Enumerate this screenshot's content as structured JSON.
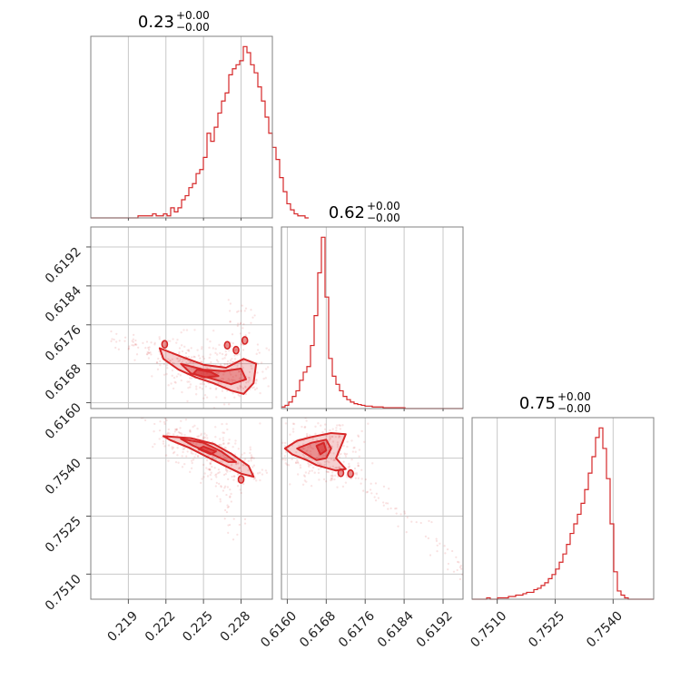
{
  "chart_data": {
    "type": "corner",
    "color": "#d62728",
    "parameters": [
      {
        "title_value": "0.23",
        "title_upper": "+0.00",
        "title_lower": "−0.00",
        "range": [
          0.216,
          0.2305
        ],
        "ticks": [
          "0.219",
          "0.222",
          "0.225",
          "0.228"
        ],
        "tick_values": [
          0.219,
          0.222,
          0.225,
          0.228
        ],
        "histogram": {
          "bin_start": 0.216,
          "bin_width": 0.00029,
          "counts": [
            0,
            0,
            0,
            0,
            0,
            0,
            0,
            0,
            0,
            0,
            0,
            0,
            0,
            1,
            1,
            1,
            1,
            2,
            1,
            1,
            2,
            1,
            5,
            3,
            5,
            9,
            11,
            15,
            17,
            22,
            24,
            30,
            42,
            38,
            45,
            52,
            58,
            62,
            71,
            74,
            76,
            78,
            85,
            82,
            76,
            72,
            65,
            58,
            50,
            42,
            35,
            29,
            20,
            13,
            7,
            4,
            2,
            1,
            1,
            0
          ]
        }
      },
      {
        "title_value": "0.62",
        "title_upper": "+0.00",
        "title_lower": "−0.00",
        "range": [
          0.61588,
          0.61961
        ],
        "ticks": [
          "0.6160",
          "0.6168",
          "0.6176",
          "0.6184",
          "0.6192"
        ],
        "tick_values": [
          0.616,
          0.6168,
          0.6176,
          0.6184,
          0.6192
        ],
        "histogram": {
          "bin_start": 0.61588,
          "bin_width": 7.46e-05,
          "counts": [
            2,
            4,
            8,
            15,
            22,
            35,
            45,
            52,
            78,
            115,
            168,
            212,
            138,
            62,
            40,
            30,
            22,
            15,
            11,
            8,
            6,
            5,
            4,
            3,
            3,
            2,
            2,
            2,
            1,
            1,
            1,
            1,
            1,
            1,
            0,
            0,
            0,
            0,
            0,
            0,
            0,
            0,
            0,
            0,
            0,
            0,
            0,
            0,
            0,
            0
          ]
        }
      },
      {
        "title_value": "0.75",
        "title_upper": "+0.00",
        "title_lower": "−0.00",
        "range": [
          0.75035,
          0.75505
        ],
        "ticks": [
          "0.7510",
          "0.7525",
          "0.7540"
        ],
        "tick_values": [
          0.751,
          0.7525,
          0.754
        ],
        "histogram": {
          "bin_start": 0.75035,
          "bin_width": 9.4e-05,
          "counts": [
            0,
            0,
            0,
            0,
            1,
            0,
            0,
            1,
            1,
            1,
            2,
            2,
            3,
            3,
            4,
            5,
            5,
            7,
            8,
            10,
            12,
            15,
            18,
            22,
            27,
            33,
            40,
            48,
            55,
            62,
            70,
            80,
            92,
            104,
            118,
            125,
            110,
            88,
            55,
            20,
            6,
            3,
            1,
            0,
            0,
            0,
            0,
            0,
            0,
            0
          ]
        }
      }
    ],
    "pairs": [
      {
        "x_param": 0,
        "y_param": 1,
        "contours": [
          [
            [
              0.2215,
              0.61712
            ],
            [
              0.2235,
              0.61692
            ],
            [
              0.225,
              0.61678
            ],
            [
              0.2268,
              0.61672
            ],
            [
              0.2282,
              0.6169
            ],
            [
              0.2292,
              0.6168
            ],
            [
              0.229,
              0.6164
            ],
            [
              0.2282,
              0.61618
            ],
            [
              0.2272,
              0.61625
            ],
            [
              0.2258,
              0.6164
            ],
            [
              0.2244,
              0.61652
            ],
            [
              0.223,
              0.61668
            ],
            [
              0.2218,
              0.6169
            ]
          ],
          [
            [
              0.2232,
              0.6168
            ],
            [
              0.225,
              0.61668
            ],
            [
              0.2266,
              0.61665
            ],
            [
              0.228,
              0.6167
            ],
            [
              0.2284,
              0.61648
            ],
            [
              0.2272,
              0.61638
            ],
            [
              0.2256,
              0.6165
            ],
            [
              0.224,
              0.6166
            ]
          ],
          [
            [
              0.2245,
              0.61668
            ],
            [
              0.2256,
              0.61663
            ],
            [
              0.2262,
              0.61655
            ],
            [
              0.225,
              0.61652
            ],
            [
              0.2242,
              0.6166
            ]
          ]
        ],
        "islands": [
          [
            0.2276,
            0.61708
          ],
          [
            0.2283,
            0.61728
          ],
          [
            0.2269,
            0.61718
          ],
          [
            0.2219,
            0.6172
          ]
        ],
        "scatter_center": [
          0.2265,
          0.61665
        ]
      },
      {
        "x_param": 0,
        "y_param": 2,
        "contours": [
          [
            [
              0.2218,
              0.75457
            ],
            [
              0.224,
              0.75452
            ],
            [
              0.2258,
              0.75437
            ],
            [
              0.2272,
              0.75412
            ],
            [
              0.2286,
              0.7538
            ],
            [
              0.229,
              0.75352
            ],
            [
              0.228,
              0.7536
            ],
            [
              0.2266,
              0.75382
            ],
            [
              0.2252,
              0.75405
            ],
            [
              0.2238,
              0.75428
            ],
            [
              0.2224,
              0.75446
            ]
          ],
          [
            [
              0.2232,
              0.7545
            ],
            [
              0.225,
              0.7544
            ],
            [
              0.2264,
              0.75418
            ],
            [
              0.2276,
              0.7539
            ],
            [
              0.227,
              0.7539
            ],
            [
              0.2256,
              0.75412
            ],
            [
              0.2242,
              0.75432
            ]
          ],
          [
            [
              0.225,
              0.7543
            ],
            [
              0.226,
              0.75418
            ],
            [
              0.2256,
              0.7541
            ],
            [
              0.2246,
              0.75424
            ]
          ]
        ],
        "islands": [
          [
            0.228,
            0.75345
          ]
        ],
        "scatter_center": [
          0.226,
          0.754
        ]
      },
      {
        "x_param": 1,
        "y_param": 2,
        "contours": [
          [
            [
              0.61595,
              0.75425
            ],
            [
              0.6162,
              0.75445
            ],
            [
              0.6165,
              0.75455
            ],
            [
              0.6169,
              0.75465
            ],
            [
              0.6172,
              0.75462
            ],
            [
              0.6171,
              0.7543
            ],
            [
              0.617,
              0.754
            ],
            [
              0.6172,
              0.75372
            ],
            [
              0.617,
              0.75368
            ],
            [
              0.6166,
              0.75382
            ],
            [
              0.6164,
              0.75395
            ],
            [
              0.6161,
              0.7541
            ]
          ],
          [
            [
              0.6162,
              0.75425
            ],
            [
              0.6165,
              0.7544
            ],
            [
              0.6168,
              0.75448
            ],
            [
              0.6169,
              0.75425
            ],
            [
              0.6168,
              0.754
            ],
            [
              0.6166,
              0.75395
            ],
            [
              0.6164,
              0.7541
            ]
          ],
          [
            [
              0.6166,
              0.75432
            ],
            [
              0.61675,
              0.7544
            ],
            [
              0.6168,
              0.7542
            ],
            [
              0.61668,
              0.7541
            ]
          ]
        ],
        "islands": [
          [
            0.6171,
            0.75362
          ],
          [
            0.6173,
            0.7536
          ]
        ],
        "scatter_center": [
          0.617,
          0.754
        ]
      }
    ]
  }
}
